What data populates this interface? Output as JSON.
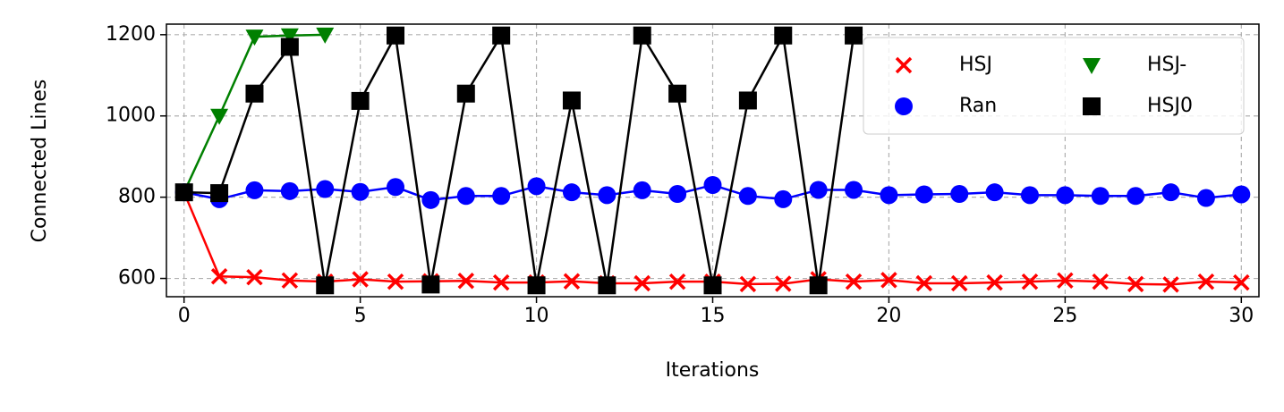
{
  "chart_data": {
    "type": "line",
    "x_label": "Iterations",
    "y_label": "Connected Lines",
    "x": [
      0,
      1,
      2,
      3,
      4,
      5,
      6,
      7,
      8,
      9,
      10,
      11,
      12,
      13,
      14,
      15,
      16,
      17,
      18,
      19,
      20,
      21,
      22,
      23,
      24,
      25,
      26,
      27,
      28,
      29,
      30
    ],
    "xlim": [
      -0.5,
      30.5
    ],
    "xticks": [
      0,
      5,
      10,
      15,
      20,
      25,
      30
    ],
    "ylim": [
      555,
      1226
    ],
    "yticks": [
      600,
      800,
      1000,
      1200
    ],
    "grid": true,
    "legend": "upper right",
    "series": [
      {
        "name": "HSJ",
        "color": "#ff0000",
        "marker": "x",
        "values": [
          812,
          605,
          603,
          595,
          592,
          598,
          592,
          593,
          594,
          590,
          590,
          593,
          588,
          588,
          592,
          592,
          586,
          587,
          598,
          592,
          596,
          588,
          588,
          590,
          592,
          595,
          592,
          586,
          585,
          592,
          590
        ]
      },
      {
        "name": "Ran",
        "color": "#0000ff",
        "marker": "circle",
        "values": [
          812,
          795,
          817,
          815,
          820,
          813,
          825,
          793,
          803,
          803,
          827,
          812,
          805,
          817,
          808,
          830,
          803,
          795,
          818,
          818,
          805,
          807,
          808,
          812,
          805,
          805,
          803,
          803,
          812,
          798,
          807
        ]
      },
      {
        "name": "HSJ-",
        "color": "#008000",
        "marker": "triangle",
        "values": [
          812,
          1000,
          1195,
          1198,
          1200,
          null,
          null,
          null,
          null,
          null,
          null,
          null,
          null,
          null,
          null,
          null,
          null,
          null,
          null,
          null,
          null,
          null,
          null,
          null,
          null,
          null,
          null,
          null,
          null,
          null,
          null
        ]
      },
      {
        "name": "HSJ0",
        "color": "#000000",
        "marker": "square",
        "values": [
          812,
          810,
          1055,
          1170,
          583,
          1037,
          1198,
          585,
          1055,
          1198,
          583,
          1038,
          583,
          1198,
          1055,
          583,
          1038,
          1198,
          583,
          1198,
          null,
          null,
          null,
          null,
          null,
          null,
          null,
          null,
          null,
          null,
          null
        ]
      }
    ]
  }
}
